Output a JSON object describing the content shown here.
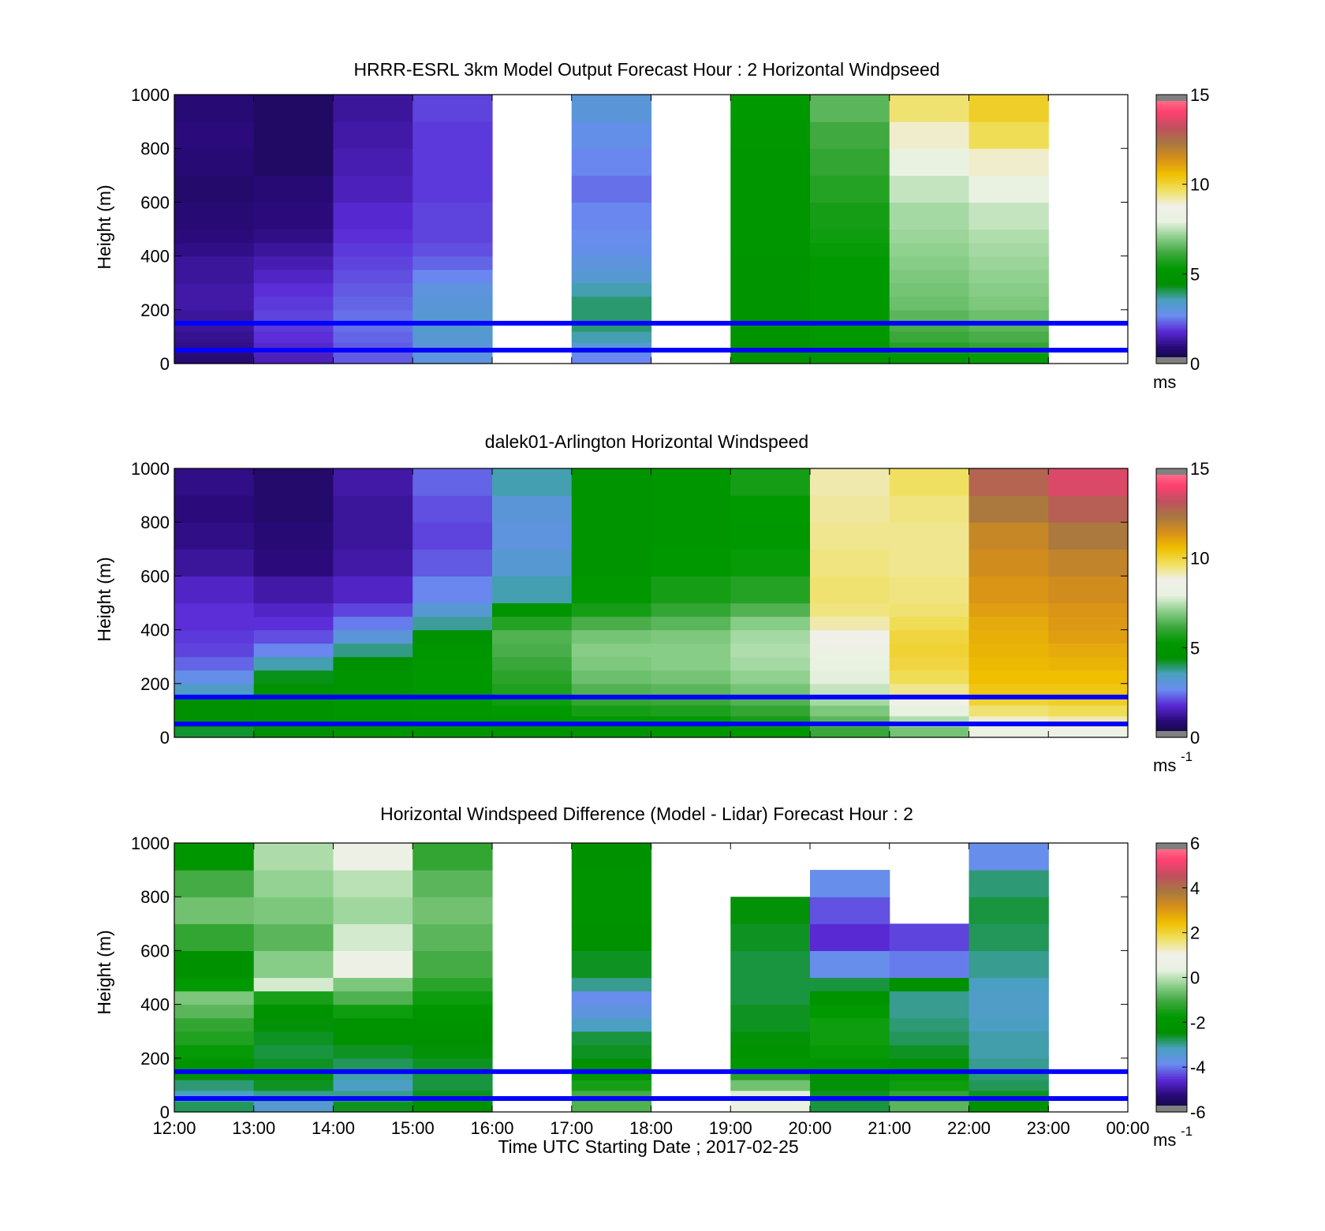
{
  "figure": {
    "xlabel": "Time UTC  Starting Date ; 2017-02-25",
    "x_ticks": [
      "12:00",
      "13:00",
      "14:00",
      "15:00",
      "16:00",
      "17:00",
      "18:00",
      "19:00",
      "20:00",
      "21:00",
      "22:00",
      "23:00",
      "00:00"
    ]
  },
  "colors": {
    "reference_lines": "#0000ff",
    "colormap": [
      "#808080",
      "#0a0a33",
      "#2a0a7a",
      "#5a2ad6",
      "#6a8cf0",
      "#4aa0c0",
      "#009000",
      "#009900",
      "#3ea83e",
      "#8ccf8c",
      "#e8f2e0",
      "#f0f0e8",
      "#f0e060",
      "#f0c000",
      "#d89018",
      "#a87840",
      "#c05060",
      "#ff4070",
      "#ff8090",
      "#808080"
    ]
  },
  "chart_data": [
    {
      "type": "heatmap",
      "title": "HRRR-ESRL 3km Model Output   Forecast Hour : 2 Horizontal Windpseed",
      "ylabel": "Height (m)",
      "x": [
        "12:00",
        "13:00",
        "14:00",
        "15:00",
        "16:00",
        "17:00",
        "18:00",
        "19:00",
        "20:00",
        "21:00",
        "22:00",
        "23:00"
      ],
      "xlim": [
        "12:00",
        "00:00"
      ],
      "ylim": [
        0,
        1000
      ],
      "y_ticks": [
        0,
        200,
        400,
        600,
        800,
        1000
      ],
      "colorbar": {
        "min": 0,
        "max": 15,
        "ticks": [
          0,
          5,
          10,
          15
        ],
        "label": "ms"
      },
      "reference_lines_m": [
        50,
        150
      ],
      "heights_m": [
        40,
        80,
        120,
        160,
        200,
        250,
        300,
        350,
        400,
        450,
        500,
        600,
        700,
        800,
        900,
        1000
      ],
      "values": [
        [
          0.8,
          1.0,
          1.1,
          1.2,
          1.2,
          1.3,
          1.3,
          1.2,
          1.2,
          1.0,
          0.9,
          0.8,
          0.7,
          0.8,
          0.9,
          0.8
        ],
        [
          1.5,
          1.7,
          1.8,
          1.9,
          2.0,
          1.9,
          1.8,
          1.6,
          1.4,
          1.2,
          1.0,
          0.9,
          0.8,
          0.6,
          0.6,
          0.6
        ],
        [
          2.2,
          2.2,
          2.3,
          2.4,
          2.4,
          2.3,
          2.2,
          2.1,
          2.0,
          1.9,
          1.8,
          1.7,
          1.5,
          1.4,
          1.3,
          1.2
        ],
        [
          3.0,
          3.1,
          3.2,
          3.3,
          3.2,
          3.1,
          3.0,
          2.6,
          2.3,
          2.1,
          2.0,
          2.0,
          1.9,
          1.9,
          1.9,
          2.0
        ],
        [
          null,
          null,
          null,
          null,
          null,
          null,
          null,
          null,
          null,
          null,
          null,
          null,
          null,
          null,
          null,
          null
        ],
        [
          2.6,
          3.2,
          3.6,
          3.9,
          3.9,
          3.9,
          3.6,
          3.2,
          3.0,
          2.8,
          2.7,
          2.6,
          2.4,
          2.6,
          2.8,
          3.1
        ],
        [
          null,
          null,
          null,
          null,
          null,
          null,
          null,
          null,
          null,
          null,
          null,
          null,
          null,
          null,
          null,
          null
        ],
        [
          4.7,
          4.9,
          4.9,
          4.9,
          4.9,
          4.9,
          4.9,
          4.9,
          4.9,
          5.0,
          5.0,
          5.0,
          5.0,
          5.0,
          5.1,
          5.3
        ],
        [
          4.8,
          5.2,
          5.3,
          5.3,
          5.3,
          5.3,
          5.3,
          5.3,
          5.3,
          5.4,
          5.5,
          5.6,
          5.8,
          6.0,
          6.2,
          6.5
        ],
        [
          5.0,
          5.8,
          6.1,
          6.3,
          6.5,
          6.7,
          6.8,
          6.9,
          7.0,
          7.1,
          7.2,
          7.3,
          7.6,
          8.0,
          9.0,
          9.6
        ],
        [
          5.4,
          6.0,
          6.3,
          6.5,
          6.7,
          6.9,
          7.0,
          7.1,
          7.2,
          7.3,
          7.4,
          7.6,
          8.0,
          9.0,
          9.8,
          10.2
        ],
        [
          null,
          null,
          null,
          null,
          null,
          null,
          null,
          null,
          null,
          null,
          null,
          null,
          null,
          null,
          null,
          null
        ]
      ]
    },
    {
      "type": "heatmap",
      "title": "dalek01-Arlington  Horizontal Windspeed",
      "ylabel": "Height (m)",
      "x": [
        "12:00",
        "13:00",
        "14:00",
        "15:00",
        "16:00",
        "17:00",
        "18:00",
        "19:00",
        "20:00",
        "21:00",
        "22:00",
        "23:00"
      ],
      "xlim": [
        "12:00",
        "00:00"
      ],
      "ylim": [
        0,
        1000
      ],
      "y_ticks": [
        0,
        200,
        400,
        600,
        800,
        1000
      ],
      "colorbar": {
        "min": 0,
        "max": 15,
        "ticks": [
          0,
          5,
          10,
          15
        ],
        "label": "ms",
        "label_superscript": "-1"
      },
      "reference_lines_m": [
        50,
        150
      ],
      "heights_m": [
        40,
        80,
        120,
        160,
        200,
        250,
        300,
        350,
        400,
        450,
        500,
        600,
        700,
        800,
        900,
        1000
      ],
      "values": [
        [
          4.2,
          4.4,
          4.5,
          4.4,
          3.4,
          2.8,
          2.3,
          2.0,
          1.9,
          1.8,
          1.8,
          1.6,
          1.2,
          1.0,
          0.9,
          1.0
        ],
        [
          4.4,
          4.6,
          4.7,
          4.6,
          4.5,
          4.3,
          3.6,
          2.6,
          2.1,
          1.8,
          1.6,
          1.3,
          0.9,
          0.8,
          0.7,
          0.7
        ],
        [
          4.8,
          4.9,
          5.0,
          5.0,
          4.9,
          4.8,
          4.5,
          3.8,
          3.1,
          2.5,
          2.0,
          1.6,
          1.3,
          1.2,
          1.2,
          1.3
        ],
        [
          4.9,
          5.0,
          5.1,
          5.2,
          5.2,
          5.2,
          5.1,
          5.0,
          4.6,
          3.7,
          3.2,
          2.6,
          2.2,
          2.0,
          2.1,
          2.3
        ],
        [
          4.7,
          5.0,
          5.3,
          5.5,
          5.7,
          5.9,
          6.1,
          6.3,
          6.4,
          5.8,
          4.8,
          3.6,
          3.2,
          3.0,
          3.1,
          3.6
        ],
        [
          4.7,
          5.2,
          5.6,
          6.0,
          6.4,
          6.7,
          6.9,
          7.0,
          6.8,
          6.3,
          5.6,
          5.1,
          4.9,
          4.8,
          4.8,
          4.9
        ],
        [
          5.0,
          5.3,
          5.7,
          6.1,
          6.5,
          6.8,
          7.0,
          7.0,
          6.9,
          6.5,
          6.0,
          5.6,
          5.2,
          5.0,
          5.0,
          5.0
        ],
        [
          5.2,
          5.6,
          6.0,
          6.4,
          6.8,
          7.1,
          7.3,
          7.4,
          7.3,
          7.0,
          6.4,
          5.8,
          5.4,
          5.2,
          5.3,
          5.6
        ],
        [
          6.1,
          6.5,
          6.9,
          7.3,
          7.6,
          7.9,
          8.1,
          8.4,
          8.8,
          9.2,
          9.5,
          9.6,
          9.5,
          9.4,
          9.3,
          9.2
        ],
        [
          6.8,
          7.4,
          8.0,
          8.8,
          9.4,
          9.8,
          10.0,
          10.1,
          10.0,
          9.8,
          9.6,
          9.5,
          9.4,
          9.4,
          9.5,
          9.7
        ],
        [
          8.3,
          9.0,
          9.6,
          10.1,
          10.4,
          10.6,
          10.7,
          10.8,
          10.9,
          11.0,
          11.2,
          11.4,
          11.6,
          11.8,
          12.3,
          12.8
        ],
        [
          8.6,
          9.2,
          9.8,
          10.2,
          10.4,
          10.6,
          10.8,
          11.0,
          11.2,
          11.3,
          11.4,
          11.6,
          11.9,
          12.3,
          12.9,
          13.6
        ]
      ]
    },
    {
      "type": "heatmap",
      "title": "Horizontal Windspeed Difference (Model - Lidar) Forecast Hour : 2",
      "ylabel": "Height (m)",
      "x": [
        "12:00",
        "13:00",
        "14:00",
        "15:00",
        "16:00",
        "17:00",
        "18:00",
        "19:00",
        "20:00",
        "21:00",
        "22:00",
        "23:00"
      ],
      "xlim": [
        "12:00",
        "00:00"
      ],
      "ylim": [
        0,
        1000
      ],
      "y_ticks": [
        0,
        200,
        400,
        600,
        800,
        1000
      ],
      "colorbar": {
        "min": -6,
        "max": 6,
        "ticks": [
          -6,
          -4,
          -2,
          0,
          2,
          4,
          6
        ],
        "label": "ms",
        "label_superscript": "-1"
      },
      "reference_lines_m": [
        50,
        150
      ],
      "heights_m": [
        40,
        80,
        120,
        160,
        200,
        250,
        300,
        350,
        400,
        450,
        500,
        600,
        700,
        800,
        900,
        1000
      ],
      "values": [
        [
          -2.8,
          -3.2,
          -2.9,
          -2.5,
          -2.1,
          -1.7,
          -1.4,
          -1.2,
          -0.8,
          -0.5,
          -1.8,
          -2.4,
          -1.2,
          -0.6,
          -1.0,
          -2.0
        ],
        [
          -3.4,
          -3.0,
          -2.6,
          -2.5,
          -2.6,
          -2.7,
          -2.6,
          -2.5,
          -2.2,
          -1.5,
          0.2,
          -0.4,
          -0.8,
          -0.5,
          -0.3,
          -0.1
        ],
        [
          -2.6,
          -3.0,
          -3.2,
          -3.1,
          -2.8,
          -2.6,
          -2.4,
          -2.2,
          -1.6,
          -0.9,
          -0.5,
          0.8,
          0.2,
          -0.2,
          0.0,
          0.8
        ],
        [
          -2.4,
          -2.6,
          -2.7,
          -2.7,
          -2.6,
          -2.5,
          -2.4,
          -2.2,
          -2.0,
          -1.6,
          -1.3,
          -1.0,
          -0.8,
          -0.6,
          -0.8,
          -1.2
        ],
        [
          null,
          null,
          null,
          null,
          null,
          null,
          null,
          null,
          null,
          null,
          null,
          null,
          null,
          null,
          null,
          null
        ],
        [
          -0.9,
          -1.0,
          -1.5,
          -1.9,
          -2.4,
          -2.6,
          -2.7,
          -3.2,
          -3.6,
          -3.8,
          -3.0,
          -2.6,
          -2.4,
          -2.2,
          -2.2,
          -2.4
        ],
        [
          null,
          null,
          null,
          null,
          null,
          null,
          null,
          null,
          null,
          null,
          null,
          null,
          null,
          null,
          null,
          null
        ],
        [
          0.6,
          0.3,
          -0.6,
          -1.3,
          -1.9,
          -2.2,
          -2.5,
          -2.6,
          -2.6,
          -2.7,
          -2.7,
          -2.7,
          -2.6,
          -2.5,
          null,
          null
        ],
        [
          -2.7,
          -2.6,
          -2.5,
          -2.3,
          -2.0,
          -1.7,
          -1.6,
          -1.6,
          -1.8,
          -2.2,
          -2.7,
          -3.8,
          -4.6,
          -4.3,
          -3.8,
          null
        ],
        [
          -0.8,
          -1.2,
          -1.6,
          -1.9,
          -2.3,
          -2.6,
          -2.8,
          -2.9,
          -3.0,
          -3.0,
          -2.4,
          -4.0,
          -4.4,
          null,
          null,
          null
        ],
        [
          -2.4,
          -2.6,
          -2.8,
          -2.9,
          -3.0,
          -3.1,
          -3.1,
          -3.2,
          -3.3,
          -3.3,
          -3.2,
          -3.0,
          -2.8,
          -2.7,
          -2.9,
          -3.8
        ],
        [
          null,
          null,
          null,
          null,
          null,
          null,
          null,
          null,
          null,
          null,
          null,
          null,
          null,
          null,
          null,
          null
        ]
      ]
    }
  ]
}
